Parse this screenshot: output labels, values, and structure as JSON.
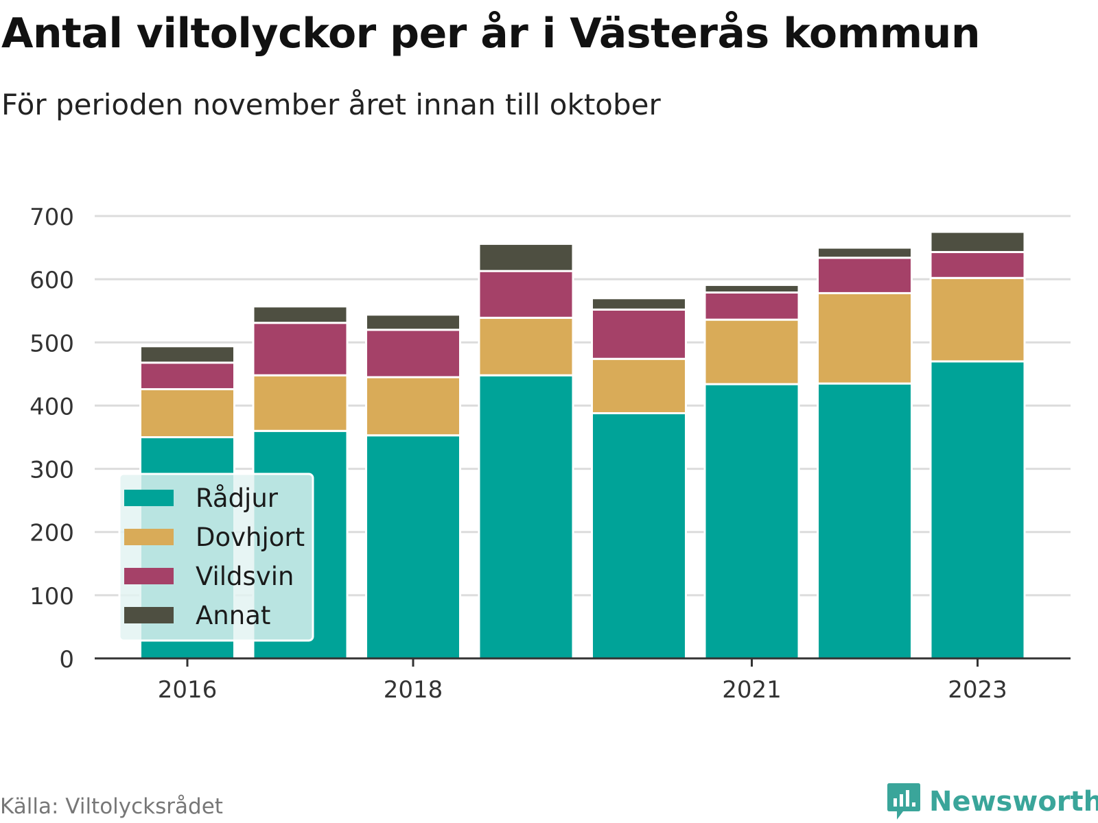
{
  "title": "Antal viltolyckor per år i Västerås kommun",
  "subtitle": "För perioden november året innan till oktober",
  "source": "Källa: Viltolycksrådet",
  "brand": {
    "name": "Newsworthy",
    "icon": "newsworthy-chart-icon",
    "color": "#3aa59a"
  },
  "chart_data": {
    "type": "bar",
    "stacked": true,
    "x": [
      2016,
      2017,
      2018,
      2019,
      2020,
      2021,
      2022,
      2023
    ],
    "xticks": [
      2016,
      2018,
      2021,
      2023
    ],
    "ylim": [
      0,
      700
    ],
    "yticks": [
      0,
      100,
      200,
      300,
      400,
      500,
      600,
      700
    ],
    "grid": true,
    "legend_position": "bottom-left",
    "series": [
      {
        "name": "Rådjur",
        "color": "#00a398",
        "values": [
          350,
          360,
          353,
          448,
          388,
          434,
          435,
          470
        ]
      },
      {
        "name": "Dovhjort",
        "color": "#d9ab58",
        "values": [
          76,
          88,
          92,
          91,
          86,
          102,
          143,
          132
        ]
      },
      {
        "name": "Vildsvin",
        "color": "#a54168",
        "values": [
          42,
          83,
          75,
          74,
          78,
          43,
          56,
          41
        ]
      },
      {
        "name": "Annat",
        "color": "#4e4f41",
        "values": [
          26,
          26,
          24,
          43,
          18,
          12,
          16,
          32
        ]
      }
    ]
  }
}
